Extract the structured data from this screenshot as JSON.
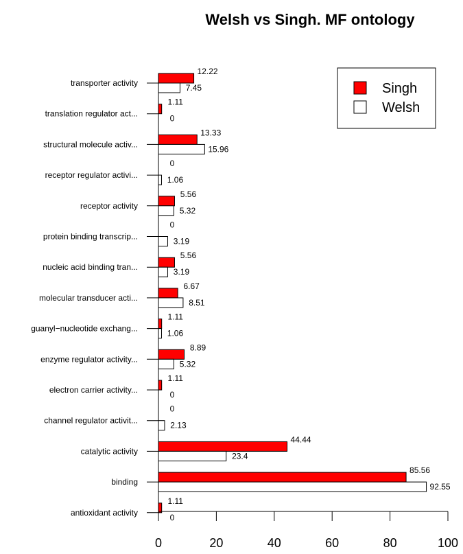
{
  "chart_data": {
    "type": "bar",
    "orientation": "horizontal",
    "title": "Welsh vs Singh. MF ontology",
    "categories": [
      "transporter activity",
      "translation regulator act...",
      "structural molecule activ...",
      "receptor regulator activi...",
      "receptor activity",
      "protein binding transcrip...",
      "nucleic acid binding tran...",
      "molecular transducer acti...",
      "guanyl−nucleotide exchang...",
      "enzyme regulator activity...",
      "electron carrier activity...",
      "channel regulator activit...",
      "catalytic activity",
      "binding",
      "antioxidant activity"
    ],
    "series": [
      {
        "name": "Singh",
        "color": "#ff0000",
        "values": [
          12.22,
          1.11,
          13.33,
          0,
          5.56,
          0,
          5.56,
          6.67,
          1.11,
          8.89,
          1.11,
          0,
          44.44,
          85.56,
          1.11
        ],
        "value_labels": [
          "12.22",
          "1.11",
          "13.33",
          "0",
          "5.56",
          "0",
          "5.56",
          "6.67",
          "1.11",
          "8.89",
          "1.11",
          "0",
          "44.44",
          "85.56",
          "1.11"
        ]
      },
      {
        "name": "Welsh",
        "color": "#ffffff",
        "values": [
          7.45,
          0,
          15.96,
          1.06,
          5.32,
          3.19,
          3.19,
          8.51,
          1.06,
          5.32,
          0,
          2.13,
          23.4,
          92.55,
          0
        ],
        "value_labels": [
          "7.45",
          "0",
          "15.96",
          "1.06",
          "5.32",
          "3.19",
          "3.19",
          "8.51",
          "1.06",
          "5.32",
          "0",
          "2.13",
          "23.4",
          "92.55",
          "0"
        ]
      }
    ],
    "xlim": [
      0,
      100
    ],
    "x_ticks": [
      "0",
      "20",
      "40",
      "60",
      "80",
      "100"
    ],
    "grid": false,
    "legend_position": "top-right"
  }
}
